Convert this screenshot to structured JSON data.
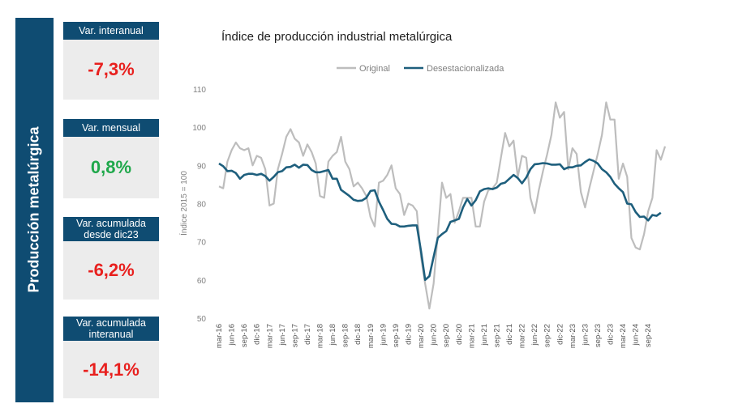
{
  "sidebar": {
    "title": "Producción metalúrgica"
  },
  "kpis": [
    {
      "label": "Var. interanual",
      "value": "-7,3%",
      "tone": "negative"
    },
    {
      "label": "Var. mensual",
      "value": "0,8%",
      "tone": "positive"
    },
    {
      "label": "Var. acumulada desde dic23",
      "value": "-6,2%",
      "tone": "negative"
    },
    {
      "label": "Var. acumulada interanual",
      "value": "-14,1%",
      "tone": "negative"
    }
  ],
  "colors": {
    "brand": "#0f4c72",
    "negative": "#e8201e",
    "positive": "#1fa84b",
    "original_line": "#bdbdbd",
    "sa_line": "#1e5f7d"
  },
  "chart_data": {
    "type": "line",
    "title": "Índice de producción industrial metalúrgica",
    "ylabel": "Índice 2015 = 100",
    "xlabel": "",
    "ylim": [
      50,
      110
    ],
    "yticks": [
      "50",
      "60",
      "70",
      "80",
      "90",
      "100",
      "110"
    ],
    "xtick_labels": [
      "mar-16",
      "jun-16",
      "sep-16",
      "dic-16",
      "mar-17",
      "jun-17",
      "sep-17",
      "dic-17",
      "mar-18",
      "jun-18",
      "sep-18",
      "dic-18",
      "mar-19",
      "jun-19",
      "sep-19",
      "dic-19",
      "mar-20",
      "jun-20",
      "sep-20",
      "dic-20",
      "mar-21",
      "jun-21",
      "sep-21",
      "dic-21",
      "mar-22",
      "jun-22",
      "sep-22",
      "dic-22",
      "mar-23",
      "jun-23",
      "sep-23",
      "dic-23",
      "mar-24",
      "jun-24",
      "sep-24"
    ],
    "series": [
      {
        "name": "Original",
        "values": [
          84.5,
          84,
          91,
          94,
          96,
          94.5,
          94,
          94.5,
          90,
          92.5,
          92,
          89,
          79.5,
          80,
          89,
          93,
          97.5,
          99.5,
          97,
          96,
          92.5,
          95.5,
          93.5,
          90.5,
          82,
          81.5,
          91,
          92.5,
          93.5,
          97.5,
          91,
          89,
          84.5,
          85.5,
          84,
          82,
          76.5,
          74,
          85.5,
          86,
          87.5,
          90,
          84,
          82.5,
          77,
          80,
          79.5,
          78,
          66,
          59,
          52.5,
          59,
          72,
          85.5,
          81.5,
          82.5,
          75,
          78,
          81.5,
          81.5,
          81.5,
          74,
          74,
          80.5,
          83.5,
          84,
          85.5,
          92,
          98.5,
          95,
          96.5,
          87,
          92.5,
          92,
          81.5,
          77.5,
          83.5,
          88.5,
          93,
          98,
          106.5,
          102.5,
          104,
          89,
          94.5,
          93,
          83,
          79,
          84,
          88.5,
          93,
          98,
          106.5,
          102,
          102,
          86.5,
          90.5,
          87,
          71,
          68.5,
          68,
          72,
          78,
          81.5,
          94,
          91.5,
          95
        ]
      },
      {
        "name": "Desestacionalizada",
        "values": [
          90.5,
          89.8,
          88.5,
          88.6,
          88,
          86.5,
          87.5,
          87.8,
          87.8,
          87.5,
          87.8,
          87.2,
          86,
          87,
          88.2,
          88.5,
          89.5,
          89.6,
          90.2,
          89.4,
          90.2,
          90.1,
          88.8,
          88.2,
          88.2,
          88.5,
          88.8,
          86.5,
          86.5,
          83.6,
          82.8,
          82,
          81,
          80.7,
          80.8,
          81.5,
          83.3,
          83.5,
          80.5,
          78.3,
          76,
          74.7,
          74.6,
          74,
          74,
          74.2,
          74.3,
          74.3,
          67.5,
          60,
          61,
          66,
          71,
          72,
          72.8,
          75.2,
          75.6,
          76,
          79,
          81.2,
          79.5,
          80.9,
          83.2,
          83.8,
          84,
          83.8,
          84.2,
          85.2,
          85.5,
          86.5,
          87.5,
          86.7,
          85.3,
          86.8,
          89,
          90.3,
          90.4,
          90.6,
          90.5,
          90.2,
          90.2,
          90.3,
          89,
          89.5,
          89.5,
          89.9,
          90,
          90.9,
          91.6,
          91.2,
          90.5,
          89,
          88.2,
          87,
          85.2,
          84,
          83,
          80,
          79.8,
          77.8,
          76.5,
          76.6,
          75.6,
          77,
          76.8,
          77.6
        ]
      }
    ]
  }
}
